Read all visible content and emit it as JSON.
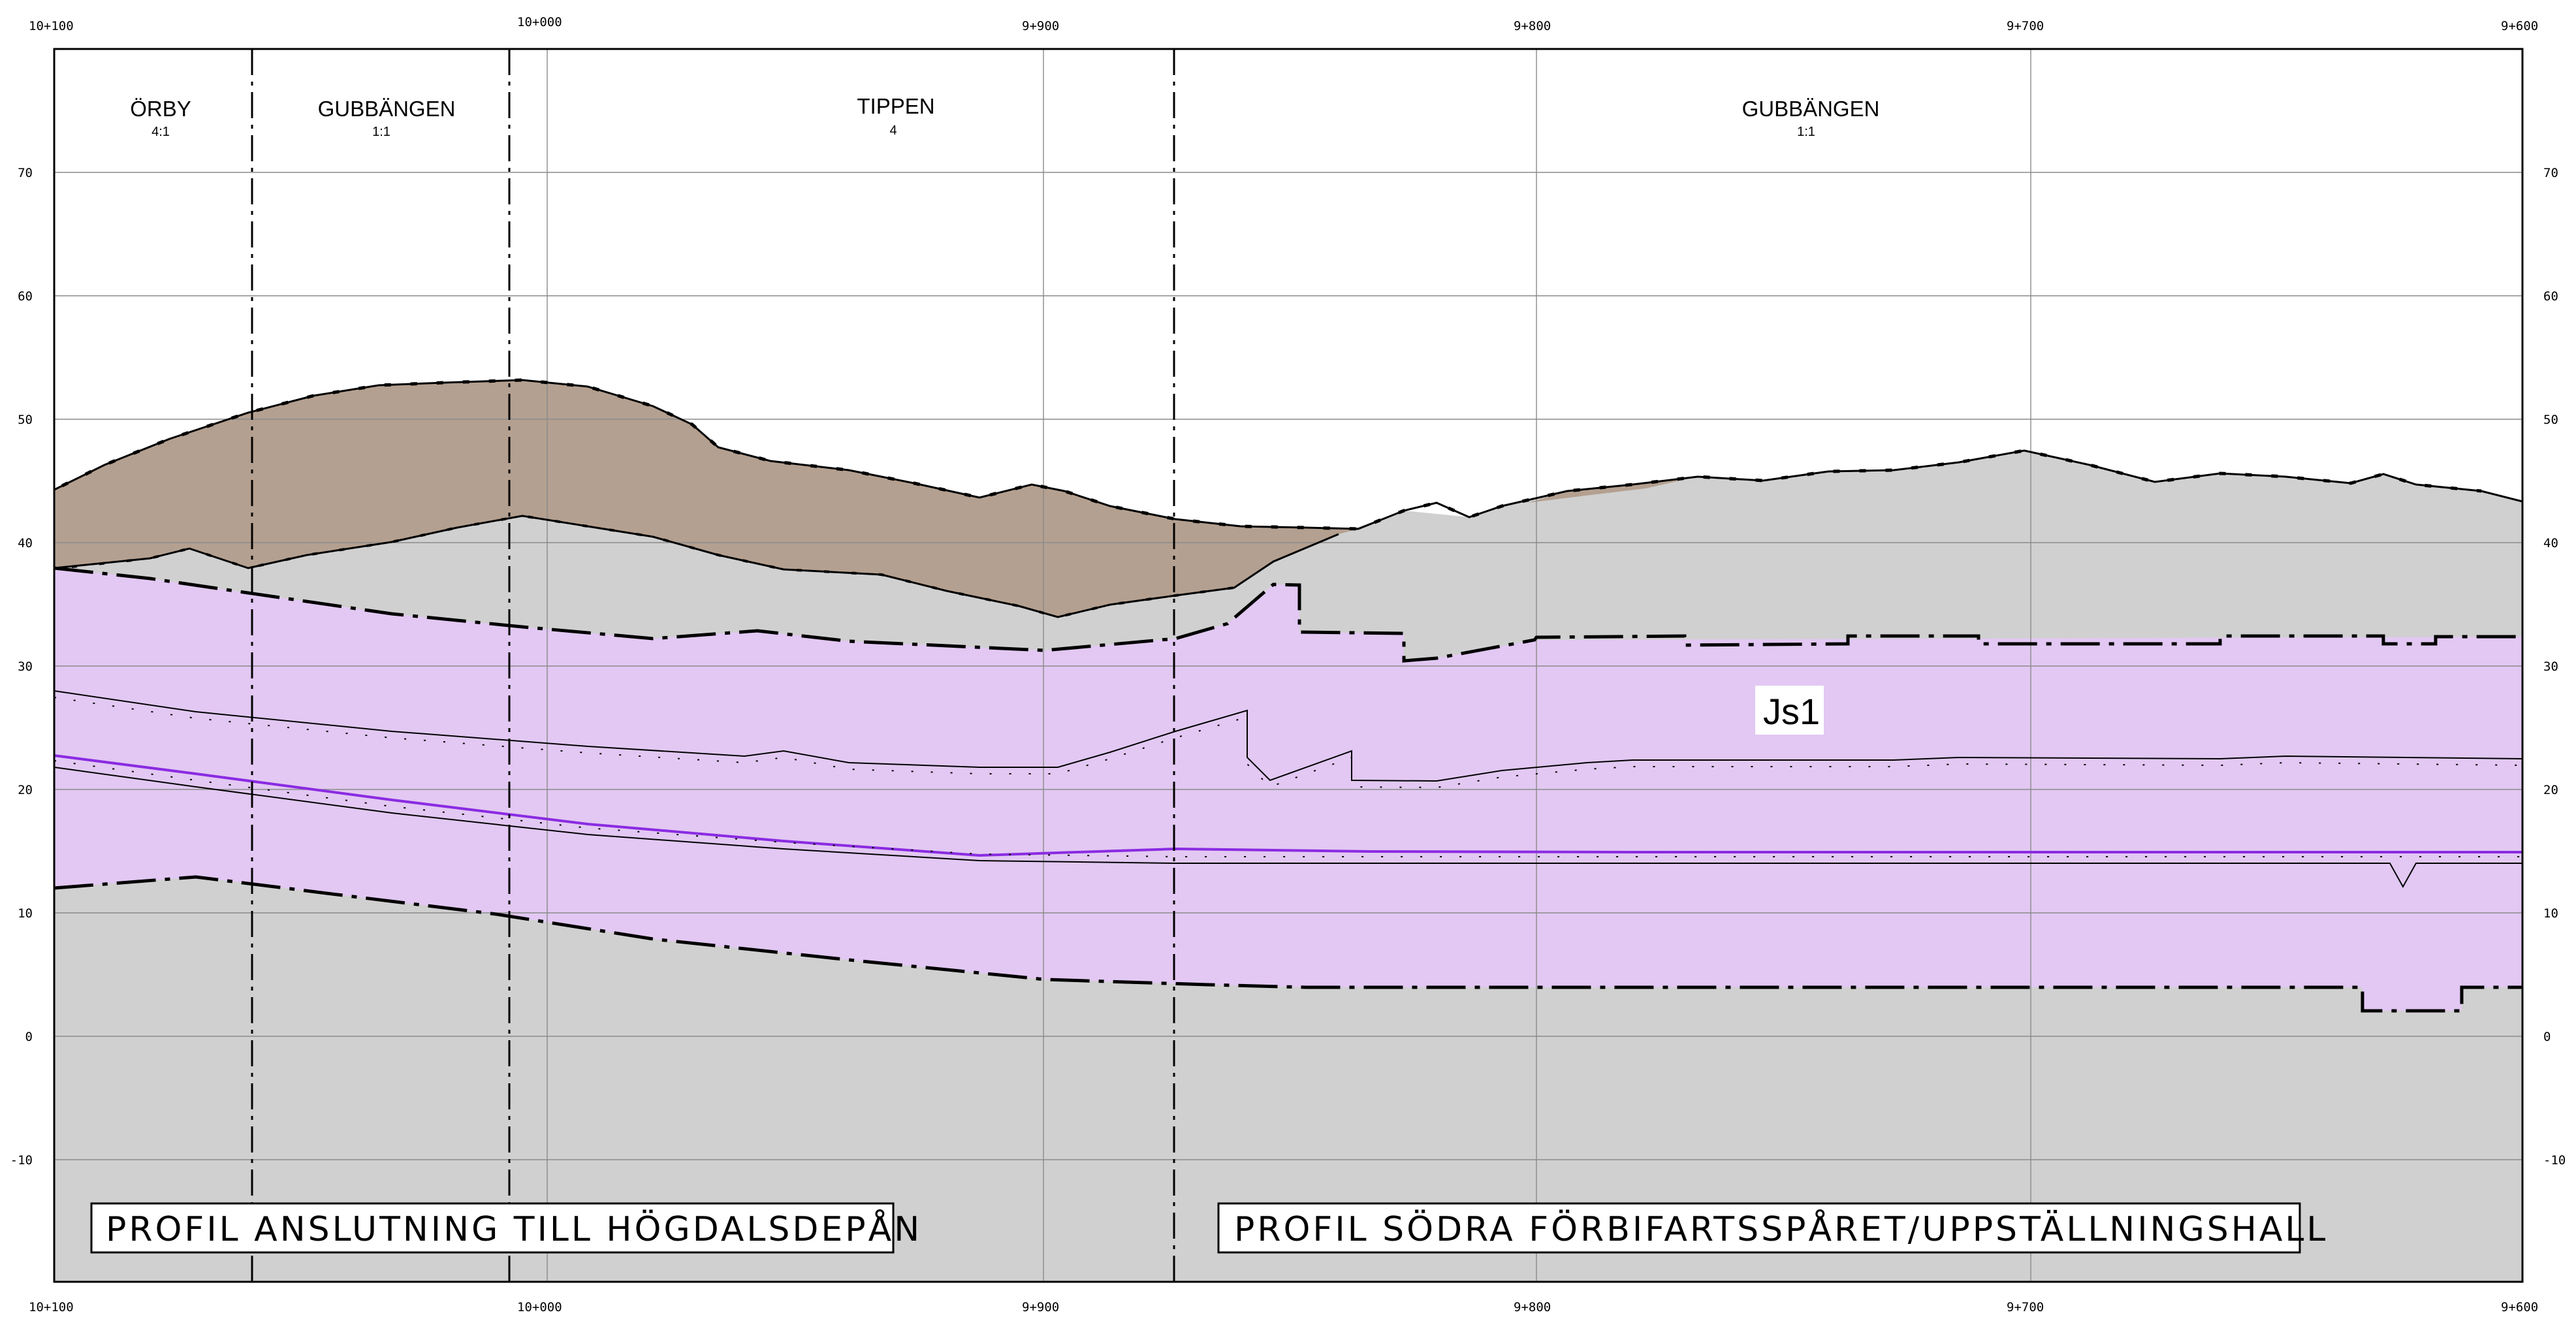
{
  "x_axis": {
    "labels": [
      "10+100",
      "10+000",
      "9+900",
      "9+800",
      "9+700",
      "9+600"
    ]
  },
  "y_axis": {
    "labels": [
      "70",
      "60",
      "50",
      "40",
      "30",
      "20",
      "10",
      "0",
      "-10"
    ]
  },
  "zones": [
    {
      "name": "ÖRBY",
      "sub": "4:1"
    },
    {
      "name": "GUBBÄNGEN",
      "sub": "1:1"
    },
    {
      "name": "TIPPEN",
      "sub": "4"
    },
    {
      "name": "GUBBÄNGEN",
      "sub": "1:1"
    }
  ],
  "soil_label": "Js1",
  "titles": {
    "left": "PROFIL ANSLUTNING TILL HÖGDALSDEPÅN",
    "right": "PROFIL SÖDRA FÖRBIFARTSSPÅRET/UPPSTÄLLNINGSHALL"
  },
  "colors": {
    "bedrock": "#d0d0d0",
    "fill_soil": "#b4a090",
    "tunnel_zone": "#e2c8f2",
    "track_line": "#8a2be2"
  }
}
